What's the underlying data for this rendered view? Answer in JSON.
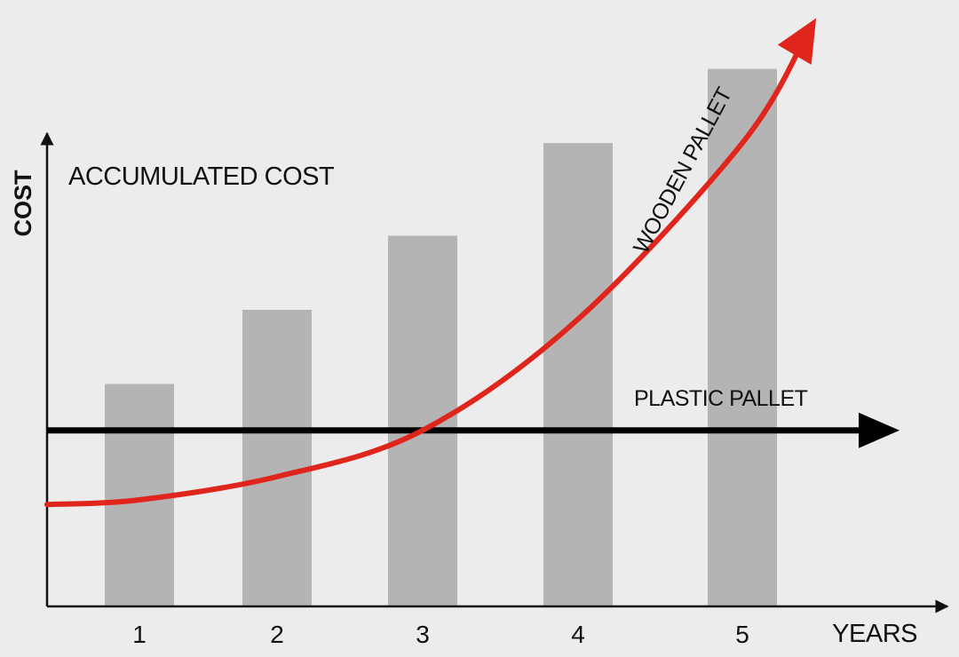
{
  "chart_data": {
    "type": "bar",
    "title": "ACCUMULATED COST",
    "ylabel": "COST",
    "xlabel": "YEARS",
    "categories": [
      "1",
      "2",
      "3",
      "4",
      "5"
    ],
    "values": [
      24,
      32,
      40,
      50,
      58
    ],
    "ylim": [
      0,
      64
    ],
    "grid": false,
    "colors": {
      "bars": "#b4b4b4",
      "wooden_pallet": "#e0261c",
      "plastic_pallet": "#000000",
      "axes": "#111111",
      "background": "#ececec"
    },
    "series": [
      {
        "name": "WOODEN PALLET",
        "type": "line",
        "color": "#e0261c",
        "x": [
          0.5,
          1,
          2,
          3,
          4,
          5,
          5.4
        ],
        "values": [
          11,
          11.5,
          14,
          19,
          31,
          50,
          62
        ]
      },
      {
        "name": "PLASTIC PALLET",
        "type": "line",
        "color": "#000000",
        "x": [
          0.5,
          5.4
        ],
        "values": [
          19,
          19
        ]
      }
    ]
  }
}
